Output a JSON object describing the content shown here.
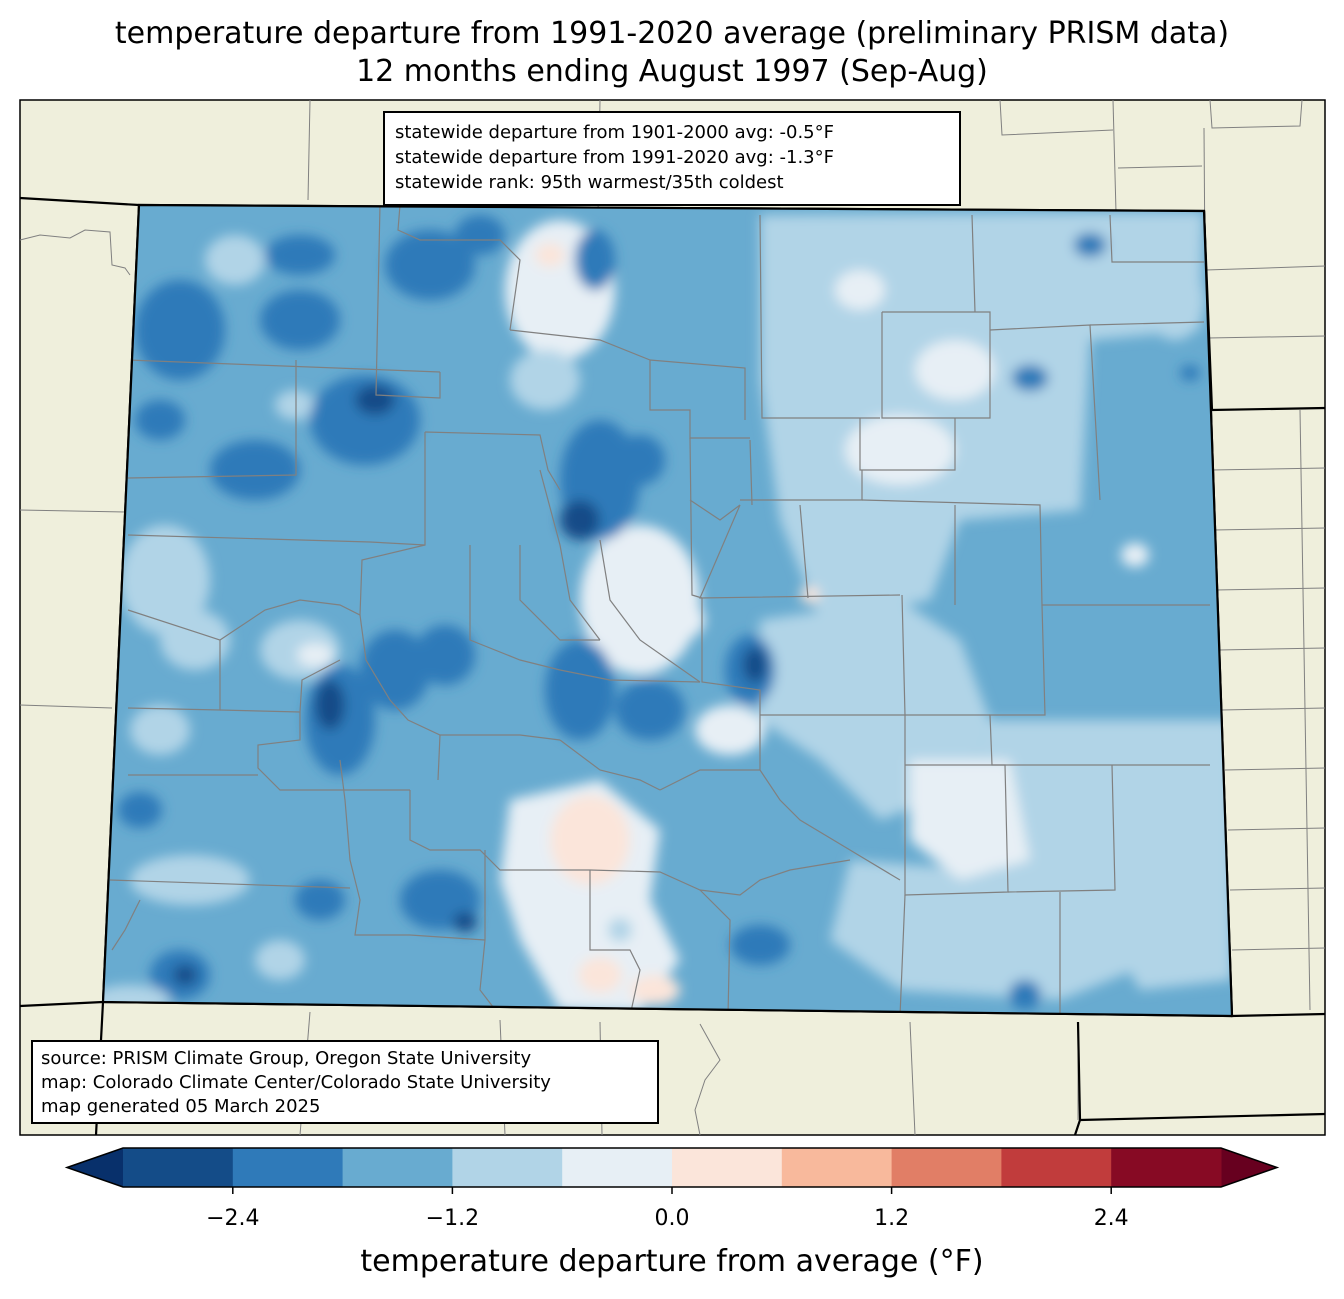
{
  "title_line1": "temperature departure from 1991-2020 average (preliminary PRISM data)",
  "title_line2": "12 months ending August 1997 (Sep-Aug)",
  "stats": {
    "line1": "statewide departure from 1901-2000 avg: -0.5°F",
    "line2": "statewide departure from 1991-2020 avg: -1.3°F",
    "line3": "statewide rank: 95th warmest/35th coldest"
  },
  "source": {
    "line1": "source: PRISM Climate Group, Oregon State University",
    "line2": "map: Colorado Climate Center/Colorado State University",
    "line3": "map generated 05 March 2025"
  },
  "colorbar": {
    "label": "temperature departure from average (°F)",
    "ticks": [
      "−2.4",
      "−1.2",
      "0.0",
      "1.2",
      "2.4"
    ],
    "tick_values": [
      -2.4,
      -1.2,
      0.0,
      1.2,
      2.4
    ],
    "levels": [
      -3.0,
      -2.4,
      -1.8,
      -1.2,
      -0.6,
      0.0,
      0.6,
      1.2,
      1.8,
      2.4,
      3.0
    ],
    "colors": [
      "#144c88",
      "#2f7ab9",
      "#68abd0",
      "#b1d4e7",
      "#e7eff5",
      "#fbe5da",
      "#f8b99c",
      "#e17e66",
      "#c13c3c",
      "#870a24"
    ],
    "under_color": "#08306b",
    "over_color": "#67001f"
  },
  "colors": {
    "land": "#efefdc",
    "county_lines": "#808080",
    "state_lines": "#000000"
  }
}
